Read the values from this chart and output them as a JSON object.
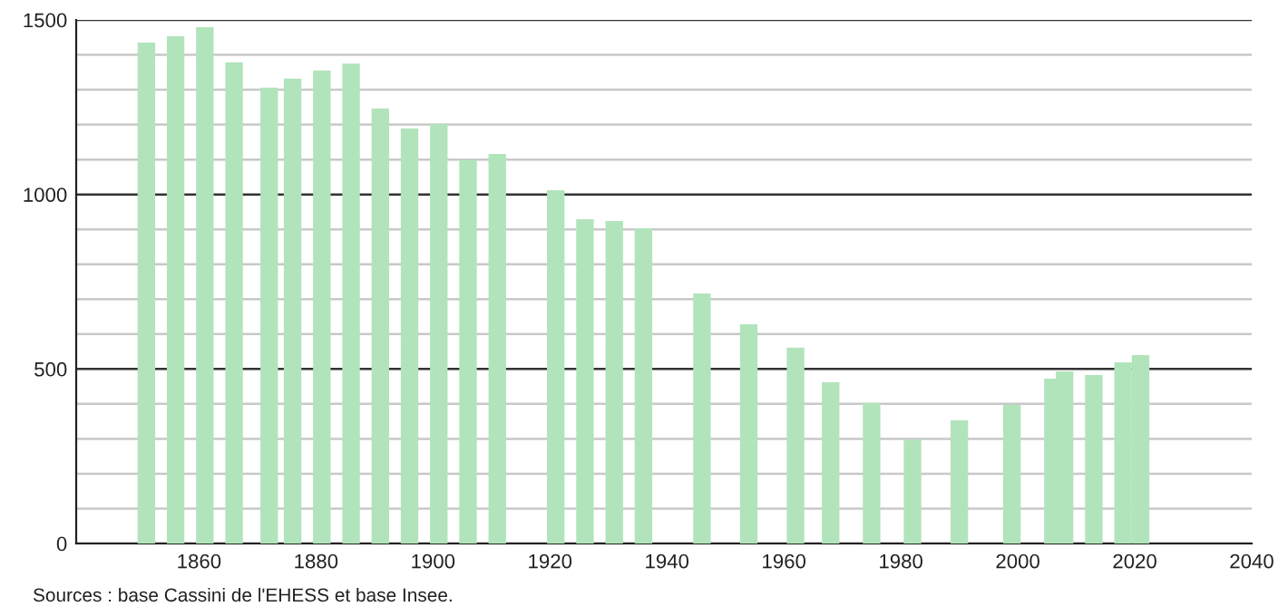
{
  "chart_data": {
    "type": "bar",
    "color": "#b2e4bb",
    "x": [
      1851,
      1856,
      1861,
      1866,
      1872,
      1876,
      1881,
      1886,
      1891,
      1896,
      1901,
      1906,
      1911,
      1921,
      1926,
      1931,
      1936,
      1946,
      1954,
      1962,
      1968,
      1975,
      1982,
      1990,
      1999,
      2006,
      2008,
      2013,
      2018,
      2021
    ],
    "values": [
      1435,
      1453,
      1479,
      1379,
      1306,
      1332,
      1355,
      1375,
      1246,
      1189,
      1202,
      1099,
      1116,
      1012,
      929,
      924,
      903,
      716,
      628,
      561,
      462,
      403,
      298,
      353,
      398,
      472,
      493,
      483,
      519,
      540
    ],
    "xlim": [
      1839,
      2040
    ],
    "xticks": [
      1860,
      1880,
      1900,
      1920,
      1940,
      1960,
      1980,
      2000,
      2020,
      2040
    ],
    "ylim": [
      0,
      1500
    ],
    "yticks": [
      0,
      {
        "value": 100,
        "label": null
      },
      {
        "value": 200,
        "label": null
      },
      {
        "value": 300,
        "label": null
      },
      {
        "value": 400,
        "label": null
      },
      500,
      {
        "value": 600,
        "label": null
      },
      {
        "value": 700,
        "label": null
      },
      {
        "value": 800,
        "label": null
      },
      {
        "value": 900,
        "label": null
      },
      1000,
      {
        "value": 1100,
        "label": null
      },
      {
        "value": 1200,
        "label": null
      },
      {
        "value": 1300,
        "label": null
      },
      {
        "value": 1400,
        "label": null
      },
      1500
    ],
    "grid": "y",
    "annotations": [
      "Sources : base Cassini de l'EHESS et base Insee."
    ]
  }
}
